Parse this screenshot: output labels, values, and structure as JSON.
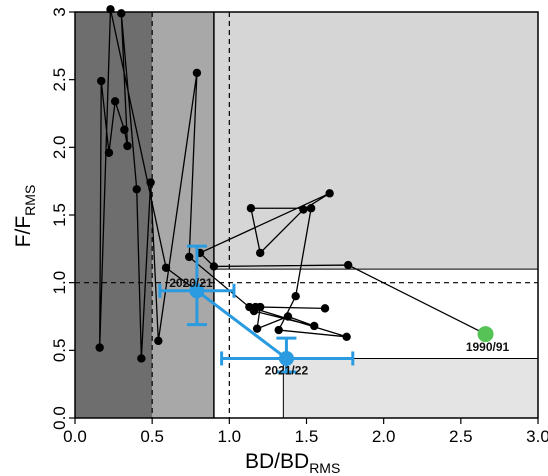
{
  "chart_data": {
    "type": "scatter",
    "title": "",
    "xlabel": "BD/BD",
    "xlabel_sub": "RMS",
    "ylabel": "F/F",
    "ylabel_sub": "RMS",
    "xlim": [
      0,
      3
    ],
    "ylim": [
      0,
      3
    ],
    "x_ticks": [
      "0.0",
      "0.5",
      "1.0",
      "1.5",
      "2.0",
      "2.5",
      "3.0"
    ],
    "y_ticks": [
      "0.0",
      "0.5",
      "1.0",
      "1.5",
      "2.0",
      "2.5",
      "3"
    ],
    "grid": false,
    "colors": {
      "zone_dark": "#6e6e6e",
      "zone_mid": "#a8a8a8",
      "zone_light": "#d6d6d6",
      "zone_lightest": "#e4e4e4",
      "series_line": "#000000",
      "highlight": "#2a9be0",
      "start_point": "#55c355"
    },
    "reference_lines": {
      "vertical_dashed": [
        0.5,
        1.0
      ],
      "vertical_solid": [
        0.9
      ],
      "horizontal_dashed": [
        1.0
      ],
      "horizontal_solid": [
        1.1
      ]
    },
    "series": [
      {
        "points": [
          {
            "x": 2.66,
            "y": 0.62
          },
          {
            "x": 1.77,
            "y": 1.13
          },
          {
            "x": 0.9,
            "y": 1.12
          },
          {
            "x": 0.81,
            "y": 1.22
          },
          {
            "x": 1.65,
            "y": 1.66
          },
          {
            "x": 1.48,
            "y": 1.54
          },
          {
            "x": 1.2,
            "y": 1.22
          },
          {
            "x": 1.14,
            "y": 1.55
          },
          {
            "x": 1.53,
            "y": 1.55
          },
          {
            "x": 1.43,
            "y": 0.9
          },
          {
            "x": 1.32,
            "y": 0.65
          },
          {
            "x": 1.76,
            "y": 0.6
          },
          {
            "x": 1.13,
            "y": 0.82
          },
          {
            "x": 1.17,
            "y": 0.82
          },
          {
            "x": 1.62,
            "y": 0.81
          },
          {
            "x": 1.2,
            "y": 0.82
          },
          {
            "x": 1.18,
            "y": 0.66
          },
          {
            "x": 1.38,
            "y": 0.75
          },
          {
            "x": 1.55,
            "y": 0.68
          },
          {
            "x": 1.16,
            "y": 0.79
          },
          {
            "x": 0.74,
            "y": 1.19
          },
          {
            "x": 0.79,
            "y": 2.55
          },
          {
            "x": 0.54,
            "y": 0.57
          },
          {
            "x": 0.49,
            "y": 1.74
          },
          {
            "x": 0.43,
            "y": 0.44
          },
          {
            "x": 0.4,
            "y": 1.69
          },
          {
            "x": 0.3,
            "y": 2.99
          },
          {
            "x": 0.34,
            "y": 2.01
          },
          {
            "x": 0.32,
            "y": 2.13
          },
          {
            "x": 0.26,
            "y": 2.34
          },
          {
            "x": 0.22,
            "y": 1.96
          },
          {
            "x": 0.17,
            "y": 2.49
          },
          {
            "x": 0.16,
            "y": 0.52
          },
          {
            "x": 0.23,
            "y": 3.02
          },
          {
            "x": 0.59,
            "y": 1.11
          },
          {
            "x": 0.79,
            "y": 0.94
          }
        ]
      },
      {
        "points": [
          {
            "x": 0.79,
            "y": 0.94,
            "label": "2020/21",
            "x_err": [
              0.55,
              1.03
            ],
            "y_err": [
              0.69,
              1.27
            ]
          },
          {
            "x": 1.37,
            "y": 0.44,
            "label": "2021/22",
            "x_err": [
              0.95,
              1.8
            ],
            "y_err": [
              0.34,
              0.59
            ]
          }
        ]
      }
    ],
    "annotations": [
      {
        "text": "1990/91",
        "x": 2.66,
        "y": 0.62
      }
    ]
  }
}
